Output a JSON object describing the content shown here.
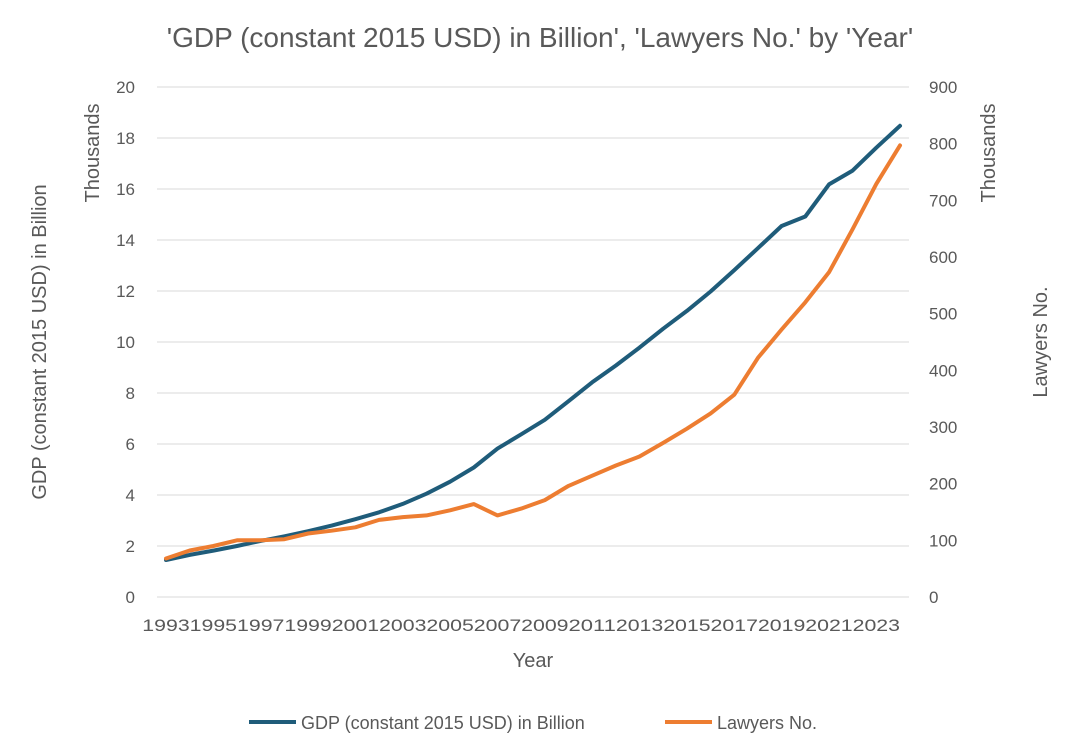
{
  "chart_data": {
    "type": "line",
    "title": "'GDP (constant 2015 USD) in Billion', 'Lawyers No.' by 'Year'",
    "xlabel": "Year",
    "ylabel_left": "GDP (constant 2015 USD) in Billion",
    "ylabel_left_units": "Thousands",
    "ylabel_right": "Lawyers No.",
    "ylabel_right_units": "Thousands",
    "ylim_left": [
      0,
      20
    ],
    "ylim_right": [
      0,
      900
    ],
    "yticks_left": [
      "0",
      "2",
      "4",
      "6",
      "8",
      "10",
      "12",
      "14",
      "16",
      "18",
      "20"
    ],
    "yticks_right": [
      "0",
      "100",
      "200",
      "300",
      "400",
      "500",
      "600",
      "700",
      "800",
      "900"
    ],
    "x": [
      1993,
      1994,
      1995,
      1996,
      1997,
      1998,
      1999,
      2000,
      2001,
      2002,
      2003,
      2004,
      2005,
      2006,
      2007,
      2008,
      2009,
      2010,
      2011,
      2012,
      2013,
      2014,
      2015,
      2016,
      2017,
      2018,
      2019,
      2020,
      2021,
      2022,
      2023,
      2024
    ],
    "x_tick_labels": [
      "1993",
      "1995",
      "1997",
      "1999",
      "2001",
      "2003",
      "2005",
      "2007",
      "2009",
      "2011",
      "2013",
      "2015",
      "2017",
      "2019",
      "2021",
      "2023"
    ],
    "series": [
      {
        "name": "GDP (constant 2015 USD) in Billion",
        "axis": "left",
        "color": "#1f5c7a",
        "values": [
          1.45,
          1.65,
          1.82,
          2.0,
          2.2,
          2.38,
          2.58,
          2.8,
          3.05,
          3.32,
          3.65,
          4.05,
          4.52,
          5.08,
          5.82,
          6.38,
          6.95,
          7.68,
          8.42,
          9.08,
          9.78,
          10.52,
          11.22,
          11.98,
          12.82,
          13.68,
          14.55,
          14.92,
          16.18,
          16.72,
          17.62,
          18.48
        ]
      },
      {
        "name": "Lawyers No.",
        "axis": "right",
        "color": "#ed7d31",
        "values": [
          68,
          82,
          90,
          100,
          100,
          102,
          112,
          117,
          123,
          136,
          141,
          144,
          153,
          164,
          144,
          156,
          171,
          196,
          214,
          232,
          248,
          272,
          297,
          324,
          357,
          422,
          472,
          520,
          573,
          649,
          729,
          797
        ]
      }
    ]
  }
}
